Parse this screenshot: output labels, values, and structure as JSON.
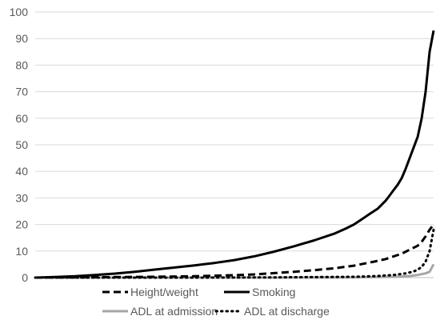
{
  "chart_data": {
    "type": "line",
    "title": "",
    "xlabel": "",
    "ylabel": "",
    "ylim": [
      0,
      100
    ],
    "yticks": [
      0,
      10,
      20,
      30,
      40,
      50,
      60,
      70,
      80,
      90,
      100
    ],
    "grid": true,
    "legend_position": "bottom",
    "x_domain": [
      0,
      100
    ],
    "series": [
      {
        "name": "Height/weight",
        "style": "dashed",
        "color": "#000000",
        "x": [
          0,
          10,
          20,
          30,
          40,
          50,
          55,
          60,
          65,
          70,
          75,
          80,
          85,
          88,
          90,
          92,
          94,
          96,
          97,
          98,
          99,
          100
        ],
        "y": [
          0,
          0.1,
          0.2,
          0.3,
          0.5,
          0.9,
          1.2,
          1.7,
          2.2,
          2.8,
          3.5,
          4.5,
          6.0,
          7.0,
          8.0,
          9.0,
          10.5,
          12.0,
          13.5,
          15.5,
          18.0,
          20.0
        ]
      },
      {
        "name": "Smoking",
        "style": "solid",
        "color": "#000000",
        "x": [
          0,
          5,
          10,
          15,
          20,
          25,
          30,
          35,
          40,
          45,
          50,
          55,
          60,
          65,
          70,
          75,
          78,
          80,
          82,
          84,
          86,
          88,
          89,
          90,
          91,
          92,
          93,
          94,
          95,
          96,
          97,
          98,
          99,
          100
        ],
        "y": [
          0,
          0.2,
          0.5,
          1.0,
          1.5,
          2.2,
          3.0,
          3.8,
          4.6,
          5.5,
          6.6,
          8.0,
          9.8,
          11.8,
          14.0,
          16.5,
          18.5,
          20.0,
          22.0,
          24.0,
          26.0,
          29.0,
          31.0,
          33.0,
          35.0,
          37.5,
          41.0,
          45.0,
          49.0,
          53.0,
          60.0,
          70.0,
          85.0,
          93.0
        ]
      },
      {
        "name": "ADL at admission",
        "style": "solid",
        "color": "#a6a6a6",
        "x": [
          0,
          20,
          40,
          60,
          80,
          90,
          94,
          96,
          98,
          99,
          100
        ],
        "y": [
          0,
          0,
          0,
          0,
          0.1,
          0.3,
          0.6,
          1.0,
          1.6,
          2.2,
          5.0
        ]
      },
      {
        "name": "ADL at discharge",
        "style": "dotted",
        "color": "#000000",
        "x": [
          0,
          20,
          40,
          60,
          80,
          86,
          90,
          93,
          95,
          96,
          97,
          98,
          99,
          100
        ],
        "y": [
          0,
          0,
          0,
          0.1,
          0.3,
          0.6,
          1.0,
          1.6,
          2.3,
          3.0,
          4.0,
          6.0,
          10.0,
          18.0
        ]
      }
    ]
  }
}
